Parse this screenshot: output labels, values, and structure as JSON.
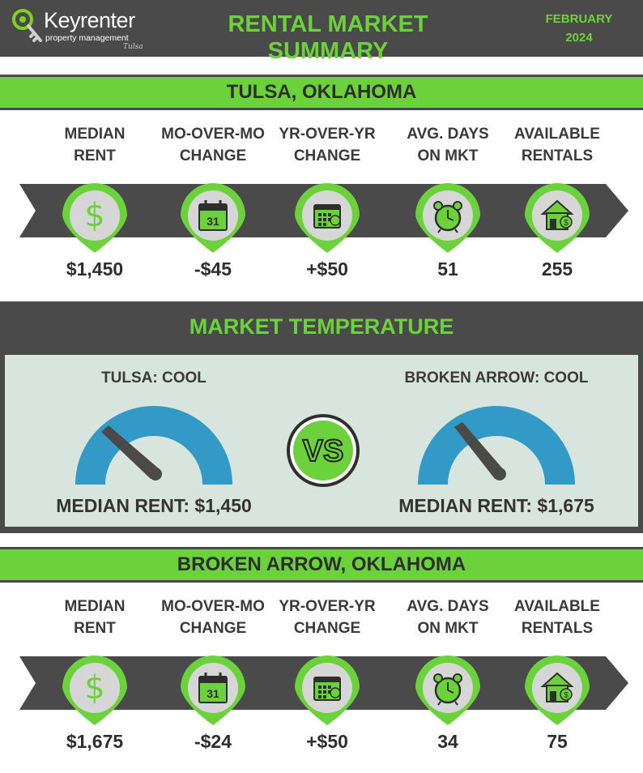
{
  "header": {
    "logo_brand": "Keyrenter",
    "logo_sub": "property management",
    "logo_city": "Tulsa",
    "title": "RENTAL MARKET SUMMARY",
    "date_month": "FEBRUARY",
    "date_year": "2024"
  },
  "colors": {
    "accent_green": "#6cd23c",
    "dark_gray": "#4a4a4a",
    "gauge_blue": "#3399c7",
    "panel_bg": "#d8e5de"
  },
  "tulsa": {
    "heading": "TULSA, OKLAHOMA",
    "stats": [
      {
        "label_line1": "MEDIAN",
        "label_line2": "RENT",
        "icon": "dollar-icon",
        "value": "$1,450"
      },
      {
        "label_line1": "MO-OVER-MO",
        "label_line2": "CHANGE",
        "icon": "calendar-31-icon",
        "value": "-$45"
      },
      {
        "label_line1": "YR-OVER-YR",
        "label_line2": "CHANGE",
        "icon": "calendar-grid-icon",
        "value": "+$50"
      },
      {
        "label_line1": "AVG. DAYS",
        "label_line2": "ON MKT",
        "icon": "alarm-clock-icon",
        "value": "51"
      },
      {
        "label_line1": "AVAILABLE",
        "label_line2": "RENTALS",
        "icon": "house-icon",
        "value": "255"
      }
    ]
  },
  "temperature": {
    "heading": "MARKET TEMPERATURE",
    "vs": "VS",
    "left": {
      "label": "TULSA: COOL",
      "median": "MEDIAN RENT: $1,450"
    },
    "right": {
      "label": "BROKEN ARROW: COOL",
      "median": "MEDIAN RENT: $1,675"
    }
  },
  "broken_arrow": {
    "heading": "BROKEN ARROW, OKLAHOMA",
    "stats": [
      {
        "label_line1": "MEDIAN",
        "label_line2": "RENT",
        "icon": "dollar-icon",
        "value": "$1,675"
      },
      {
        "label_line1": "MO-OVER-MO",
        "label_line2": "CHANGE",
        "icon": "calendar-31-icon",
        "value": "-$24"
      },
      {
        "label_line1": "YR-OVER-YR",
        "label_line2": "CHANGE",
        "icon": "calendar-grid-icon",
        "value": "+$50"
      },
      {
        "label_line1": "AVG. DAYS",
        "label_line2": "ON MKT",
        "icon": "alarm-clock-icon",
        "value": "34"
      },
      {
        "label_line1": "AVAILABLE",
        "label_line2": "RENTALS",
        "icon": "house-icon",
        "value": "75"
      }
    ]
  }
}
